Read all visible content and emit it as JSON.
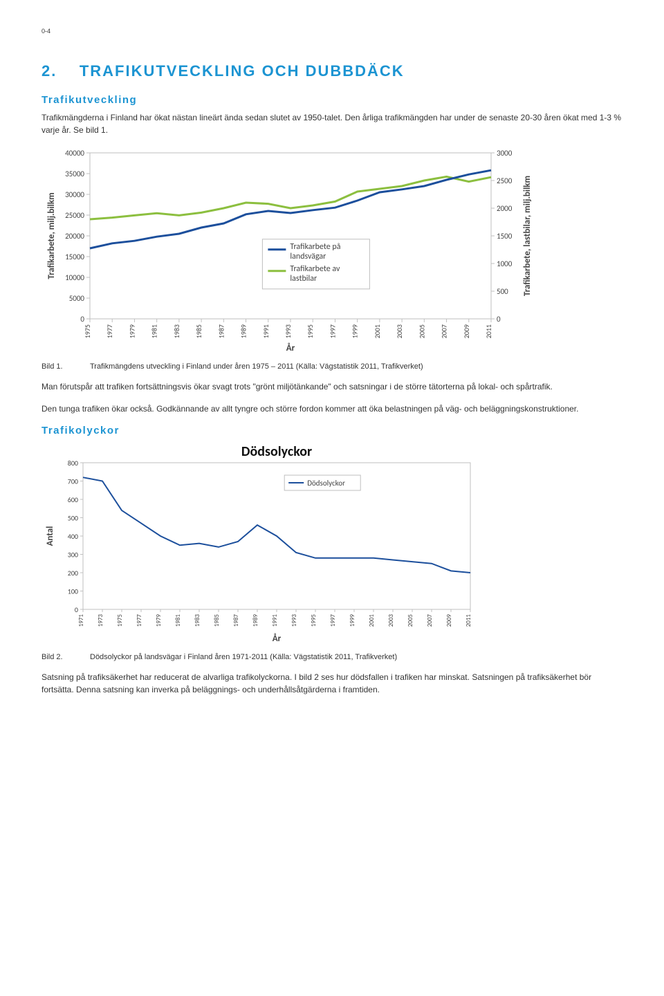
{
  "pageNumber": "0-4",
  "section": {
    "number": "2.",
    "title": "TRAFIKUTVECKLING OCH DUBBDÄCK",
    "titleColor": "#1c94d2"
  },
  "headings": {
    "sub1": "Trafikutveckling",
    "sub2": "Trafikolyckor",
    "subColor": "#1c94d2"
  },
  "paragraphs": {
    "p1": "Trafikmängderna i Finland har ökat nästan lineärt ända sedan slutet av 1950-talet. Den årliga trafikmängden har under de senaste 20-30 åren ökat med 1-3 % varje år. Se bild 1.",
    "p2": "Man förutspår att trafiken fortsättningsvis ökar svagt trots \"grönt miljötänkande\" och satsningar i de större tätorterna på lokal- och spårtrafik.",
    "p3": "Den tunga trafiken ökar också. Godkännande av allt tyngre och större fordon kommer att öka belastningen på väg- och beläggningskonstruktioner.",
    "p4": "Satsning på trafiksäkerhet har reducerat de alvarliga trafikolyckorna. I bild 2 ses hur dödsfallen i trafiken har minskat. Satsningen på trafiksäkerhet bör fortsätta. Denna satsning kan inverka på beläggnings- och underhållsåtgärderna i framtiden."
  },
  "captions": {
    "c1label": "Bild 1.",
    "c1text": "Trafikmängdens utveckling i Finland under åren 1975 – 2011 (Källa: Vägstatistik 2011, Trafikverket)",
    "c2label": "Bild 2.",
    "c2text": "Dödsolyckor på landsvägar i Finland åren 1971-2011 (Källa: Vägstatistik 2011, Trafikverket)"
  },
  "chart1": {
    "type": "line",
    "years": [
      1975,
      1977,
      1979,
      1981,
      1983,
      1985,
      1987,
      1989,
      1991,
      1993,
      1995,
      1997,
      1999,
      2001,
      2003,
      2005,
      2007,
      2009,
      2011
    ],
    "y1_label": "Trafikarbete, milj.bilkm",
    "y2_label": "Trafikarbete, lastbilar, milj.bilkm",
    "y2_label_color": "#7aa72e",
    "x_label": "År",
    "y1_ticks": [
      0,
      5000,
      10000,
      15000,
      20000,
      25000,
      30000,
      35000,
      40000
    ],
    "y2_ticks": [
      0,
      500,
      1000,
      1500,
      2000,
      2500,
      3000
    ],
    "legend": [
      "Trafikarbete på landsvägar",
      "Trafikarbete av lastbilar"
    ],
    "series1_color": "#1c4f9c",
    "series2_color": "#8cbf3f",
    "series1": [
      17000,
      18200,
      18800,
      19800,
      20500,
      22000,
      23000,
      25200,
      26000,
      25500,
      26200,
      26800,
      28500,
      30500,
      31200,
      32000,
      33500,
      34800,
      35800
    ],
    "series2": [
      1800,
      1830,
      1870,
      1910,
      1870,
      1920,
      2000,
      2100,
      2080,
      2000,
      2050,
      2120,
      2300,
      2350,
      2400,
      2500,
      2570,
      2480,
      2560
    ],
    "tick_color": "#bfbfbf",
    "border_color": "#bfbfbf",
    "background": "#ffffff",
    "line_width": 3
  },
  "chart2": {
    "type": "line",
    "title": "Dödsolyckor",
    "years": [
      1971,
      1973,
      1975,
      1977,
      1979,
      1981,
      1983,
      1985,
      1987,
      1989,
      1991,
      1993,
      1995,
      1997,
      1999,
      2001,
      2003,
      2005,
      2007,
      2009,
      2011
    ],
    "y_label": "Antal",
    "x_label": "År",
    "y_ticks": [
      0,
      100,
      200,
      300,
      400,
      500,
      600,
      700,
      800
    ],
    "legend": [
      "Dödsolyckor"
    ],
    "series_color": "#1c4f9c",
    "series": [
      720,
      700,
      540,
      470,
      400,
      350,
      360,
      340,
      370,
      460,
      400,
      310,
      280,
      280,
      280,
      280,
      270,
      260,
      250,
      210,
      200
    ],
    "tick_color": "#bfbfbf",
    "border_color": "#bfbfbf",
    "background": "#ffffff",
    "line_width": 2
  }
}
